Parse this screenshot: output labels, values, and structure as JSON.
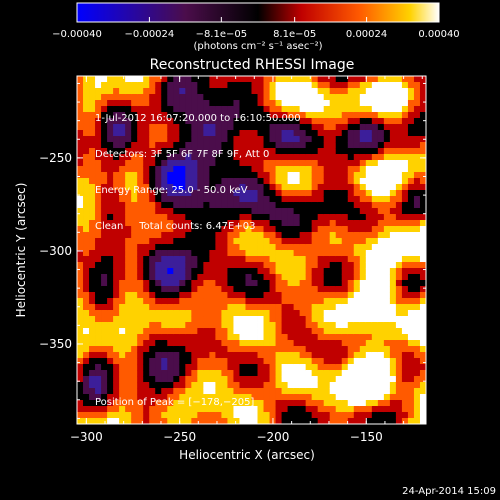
{
  "chart_data": {
    "type": "heatmap",
    "title": "Reconstructed RHESSI Image",
    "xlabel": "Heliocentric X (arcsec)",
    "ylabel": "Heliocentric Y (arcsec)",
    "xlim": [
      -305,
      -118
    ],
    "ylim": [
      -393,
      -206
    ],
    "x_ticks": [
      -300,
      -250,
      -200,
      -150
    ],
    "x_tick_labels": [
      "−300",
      "−250",
      "−200",
      "−150"
    ],
    "y_ticks": [
      -250,
      -300,
      -350
    ],
    "y_tick_labels": [
      "−250",
      "−300",
      "−350"
    ],
    "colorbar": {
      "range": [
        -0.0004,
        0.0004
      ],
      "tick_values": [
        -0.0004,
        -0.00024,
        -8.1e-05,
        8.1e-05,
        0.00024,
        0.0004
      ],
      "tick_labels": [
        "−0.00040",
        "−0.00024",
        "−8.1e−05",
        "8.1e−05",
        "0.00024",
        "0.00040"
      ],
      "unit_label": "(photons cm⁻² s⁻¹ asec⁻²)",
      "colormap": [
        "#0000ff",
        "#3c1e9a",
        "#4b0d4b",
        "#000000",
        "#c00000",
        "#ff5a00",
        "#ffd200",
        "#ffffff"
      ]
    },
    "info_lines": [
      "1-Jul-2012 16:07:20.000 to 16:10:50.000",
      "Detectors: 3F 5F 6F 7F 8F 9F, Att 0",
      "Energy Range: 25.0 - 50.0 keV",
      "Clean     Total counts: 6.47E+03"
    ],
    "peak_label": "Position of Peak = [−178,−205]",
    "peak_position": [
      -178,
      -205
    ],
    "timestamp": "24-Apr-2014 15:09"
  }
}
